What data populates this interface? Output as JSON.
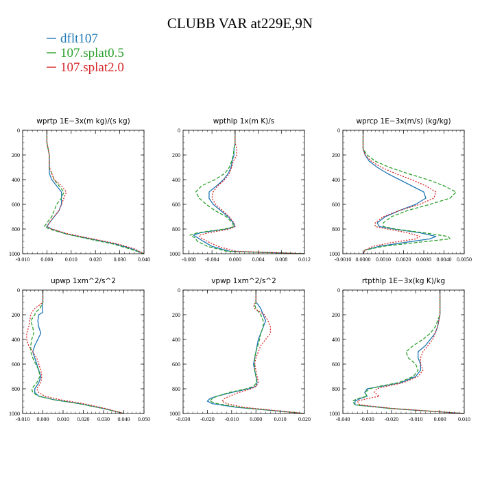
{
  "title": "CLUBB VAR at229E,9N",
  "colors": {
    "dflt107": "#1f77b4",
    "splat05": "#2ca02c",
    "splat20": "#d62728"
  },
  "legend": [
    {
      "label": "dflt107",
      "color": "#1f77b4",
      "dash": "solid"
    },
    {
      "label": "107.splat0.5",
      "color": "#2ca02c",
      "dash": "dash"
    },
    {
      "label": "107.splat2.0",
      "color": "#d62728",
      "dash": "dot"
    }
  ],
  "chart_data": [
    {
      "type": "line",
      "title": "wprtp   1E−3x(m kg)/(s kg)",
      "xlim": [
        -0.01,
        0.04
      ],
      "xticks": [
        "-0.010",
        "0.000",
        "0.010",
        "0.020",
        "0.030",
        "0.040"
      ],
      "ylim": [
        1000,
        0
      ],
      "yticks": [
        "0",
        "200",
        "400",
        "600",
        "800",
        "1000"
      ],
      "y": [
        0,
        100,
        200,
        300,
        350,
        400,
        450,
        500,
        550,
        600,
        650,
        700,
        750,
        780,
        800,
        840,
        880,
        920,
        960,
        1000
      ],
      "series": [
        {
          "name": "dflt107",
          "x": [
            0.0,
            0.0,
            0.001,
            0.001,
            0.001,
            0.002,
            0.004,
            0.006,
            0.006,
            0.006,
            0.005,
            0.003,
            0.001,
            0.0,
            0.002,
            0.008,
            0.018,
            0.028,
            0.035,
            0.04
          ]
        },
        {
          "name": "107.splat0.5",
          "x": [
            0.0,
            0.0,
            0.001,
            0.001,
            0.002,
            0.003,
            0.005,
            0.007,
            0.006,
            0.004,
            0.003,
            0.002,
            0.0,
            -0.001,
            0.001,
            0.008,
            0.017,
            0.027,
            0.034,
            0.04
          ]
        },
        {
          "name": "107.splat2.0",
          "x": [
            0.0,
            0.0,
            0.001,
            0.001,
            0.002,
            0.003,
            0.006,
            0.008,
            0.007,
            0.006,
            0.005,
            0.003,
            0.001,
            0.0,
            0.002,
            0.009,
            0.019,
            0.029,
            0.036,
            0.04
          ]
        }
      ]
    },
    {
      "type": "line",
      "title": "wpthlp   1x(m K)/s",
      "xlim": [
        -0.009,
        0.012
      ],
      "xticks": [
        "-0.008",
        "-0.004",
        "0.000",
        "0.004",
        "0.008",
        "0.012"
      ],
      "ylim": [
        1000,
        0
      ],
      "yticks": [
        "0",
        "200",
        "400",
        "600",
        "800",
        "1000"
      ],
      "y": [
        0,
        100,
        150,
        200,
        250,
        300,
        350,
        400,
        450,
        500,
        550,
        600,
        650,
        700,
        750,
        780,
        800,
        830,
        850,
        870,
        900,
        940,
        980,
        1000
      ],
      "series": [
        {
          "name": "dflt107",
          "x": [
            0.0,
            0.0,
            -0.0002,
            -0.0002,
            -0.0005,
            -0.0007,
            -0.0012,
            -0.002,
            -0.0032,
            -0.0045,
            -0.0045,
            -0.0038,
            -0.0025,
            -0.0012,
            -0.0003,
            0.0,
            -0.0015,
            -0.006,
            -0.0072,
            -0.0065,
            -0.0055,
            -0.004,
            -0.001,
            0.012
          ]
        },
        {
          "name": "107.splat0.5",
          "x": [
            0.0,
            0.0,
            -0.0002,
            -0.0003,
            -0.0006,
            -0.001,
            -0.0018,
            -0.0035,
            -0.0058,
            -0.0068,
            -0.0062,
            -0.005,
            -0.0035,
            -0.0015,
            -0.0005,
            -0.0002,
            -0.0018,
            -0.0065,
            -0.0078,
            -0.007,
            -0.0065,
            -0.0048,
            -0.0015,
            0.012
          ]
        },
        {
          "name": "107.splat2.0",
          "x": [
            0.0,
            0.0,
            0.0003,
            0.0003,
            -0.0003,
            -0.0006,
            -0.001,
            -0.0018,
            -0.003,
            -0.0038,
            -0.004,
            -0.0034,
            -0.0022,
            -0.001,
            -0.0002,
            0.0,
            -0.001,
            -0.0045,
            -0.0062,
            -0.006,
            -0.0048,
            -0.003,
            0.0,
            0.012
          ]
        }
      ]
    },
    {
      "type": "line",
      "title": "wprcp   1E−3x(m/s) (kg/kg)",
      "xlim": [
        -0.001,
        0.005
      ],
      "xticks": [
        "-0.0010",
        "0.0000",
        "0.0010",
        "0.0020",
        "0.0030",
        "0.0040",
        "0.0050"
      ],
      "ylim": [
        1000,
        0
      ],
      "yticks": [
        "0",
        "200",
        "400",
        "600",
        "800",
        "1000"
      ],
      "y": [
        0,
        100,
        150,
        200,
        250,
        300,
        350,
        400,
        450,
        500,
        550,
        600,
        650,
        700,
        750,
        780,
        800,
        830,
        860,
        880,
        910,
        940,
        970,
        1000
      ],
      "series": [
        {
          "name": "dflt107",
          "x": [
            0.0,
            0.0,
            0.0,
            0.0001,
            0.0003,
            0.0007,
            0.0012,
            0.0018,
            0.0024,
            0.003,
            0.0031,
            0.0026,
            0.0018,
            0.0011,
            0.0007,
            0.0008,
            0.0015,
            0.0028,
            0.0036,
            0.0033,
            0.002,
            0.0008,
            0.0001,
            0.0
          ]
        },
        {
          "name": "107.splat0.5",
          "x": [
            0.0,
            0.0,
            0.0,
            0.0002,
            0.0006,
            0.0013,
            0.0022,
            0.0032,
            0.004,
            0.0046,
            0.0043,
            0.0033,
            0.0022,
            0.0014,
            0.001,
            0.001,
            0.0016,
            0.003,
            0.0042,
            0.0043,
            0.0026,
            0.001,
            0.0001,
            0.0
          ]
        },
        {
          "name": "107.splat2.0",
          "x": [
            0.0,
            0.0,
            0.0,
            0.0001,
            0.0004,
            0.0009,
            0.0016,
            0.0024,
            0.0031,
            0.0036,
            0.0035,
            0.0028,
            0.0018,
            0.001,
            0.0006,
            0.0006,
            0.0012,
            0.0022,
            0.0028,
            0.0026,
            0.0014,
            0.0005,
            0.0001,
            0.0
          ]
        }
      ]
    },
    {
      "type": "line",
      "title": "upwp   1xm^2/s^2",
      "xlim": [
        -0.01,
        0.05
      ],
      "xticks": [
        "-0.010",
        "0.000",
        "0.010",
        "0.020",
        "0.030",
        "0.040",
        "0.050"
      ],
      "ylim": [
        1000,
        0
      ],
      "yticks": [
        "0",
        "200",
        "400",
        "600",
        "800",
        "1000"
      ],
      "y": [
        0,
        100,
        150,
        180,
        200,
        250,
        300,
        350,
        400,
        450,
        500,
        550,
        600,
        650,
        700,
        750,
        800,
        830,
        860,
        890,
        920,
        960,
        1000
      ],
      "series": [
        {
          "name": "dflt107",
          "x": [
            0.0,
            0.0,
            -0.0003,
            0.0,
            -0.002,
            -0.0025,
            -0.002,
            -0.001,
            -0.0025,
            -0.004,
            -0.005,
            -0.004,
            -0.003,
            -0.002,
            -0.001,
            -0.002,
            -0.004,
            -0.004,
            -0.002,
            0.006,
            0.018,
            0.03,
            0.04
          ]
        },
        {
          "name": "107.splat0.5",
          "x": [
            0.0,
            0.0,
            -0.0015,
            -0.0035,
            -0.004,
            -0.006,
            -0.005,
            -0.0045,
            -0.0055,
            -0.006,
            -0.006,
            -0.005,
            -0.0035,
            -0.002,
            -0.0015,
            -0.003,
            -0.0055,
            -0.005,
            -0.002,
            0.006,
            0.018,
            0.03,
            0.04
          ]
        },
        {
          "name": "107.splat2.0",
          "x": [
            0.0,
            0.0,
            -0.004,
            -0.0055,
            -0.006,
            -0.0065,
            -0.007,
            -0.008,
            -0.008,
            -0.007,
            -0.005,
            -0.003,
            -0.002,
            -0.001,
            -0.0005,
            -0.001,
            -0.003,
            -0.002,
            0.001,
            0.009,
            0.02,
            0.031,
            0.04
          ]
        }
      ]
    },
    {
      "type": "line",
      "title": "vpwp   1xm^2/s^2",
      "xlim": [
        -0.03,
        0.02
      ],
      "xticks": [
        "-0.030",
        "-0.020",
        "-0.010",
        "0.000",
        "0.010",
        "0.020"
      ],
      "ylim": [
        1000,
        0
      ],
      "yticks": [
        "0",
        "200",
        "400",
        "600",
        "800",
        "1000"
      ],
      "y": [
        0,
        100,
        120,
        150,
        200,
        250,
        300,
        350,
        400,
        450,
        500,
        550,
        600,
        650,
        700,
        750,
        780,
        800,
        830,
        860,
        880,
        900,
        920,
        950,
        1000
      ],
      "series": [
        {
          "name": "dflt107",
          "x": [
            0.0,
            0.0,
            0.001,
            0.002,
            0.003,
            0.004,
            0.003,
            0.002,
            0.001,
            0.0005,
            0.0,
            -0.0005,
            -0.001,
            -0.0005,
            0.0,
            0.0005,
            0.0,
            -0.003,
            -0.01,
            -0.016,
            -0.019,
            -0.02,
            -0.018,
            -0.008,
            0.02
          ]
        },
        {
          "name": "107.splat0.5",
          "x": [
            0.0,
            0.0,
            -0.0005,
            0.0,
            0.002,
            0.003,
            0.003,
            0.002,
            0.0015,
            0.0008,
            0.0,
            -0.0005,
            -0.0005,
            -0.0005,
            0.0,
            0.0003,
            -0.001,
            -0.004,
            -0.011,
            -0.016,
            -0.018,
            -0.019,
            -0.016,
            -0.007,
            0.02
          ]
        },
        {
          "name": "107.splat2.0",
          "x": [
            0.0,
            0.0,
            -0.001,
            -0.0005,
            0.0035,
            0.005,
            0.006,
            0.006,
            0.004,
            0.002,
            0.001,
            0.0,
            -0.0005,
            0.0,
            0.0005,
            0.001,
            0.0,
            -0.002,
            -0.007,
            -0.011,
            -0.013,
            -0.014,
            -0.012,
            -0.005,
            0.02
          ]
        }
      ]
    },
    {
      "type": "line",
      "title": "rtpthlp   1E−3x(kg K)/kg",
      "xlim": [
        -0.04,
        0.01
      ],
      "xticks": [
        "-0.040",
        "-0.030",
        "-0.020",
        "-0.010",
        "0.000",
        "0.010"
      ],
      "ylim": [
        1000,
        0
      ],
      "yticks": [
        "0",
        "200",
        "400",
        "600",
        "800",
        "1000"
      ],
      "y": [
        0,
        100,
        200,
        300,
        350,
        400,
        450,
        500,
        550,
        600,
        650,
        700,
        750,
        780,
        800,
        830,
        860,
        880,
        900,
        930,
        960,
        1000
      ],
      "series": [
        {
          "name": "dflt107",
          "x": [
            0.0,
            0.0,
            0.0,
            -0.001,
            -0.002,
            -0.004,
            -0.006,
            -0.009,
            -0.009,
            -0.008,
            -0.008,
            -0.01,
            -0.016,
            -0.024,
            -0.03,
            -0.031,
            -0.03,
            -0.033,
            -0.035,
            -0.035,
            -0.02,
            0.01
          ]
        },
        {
          "name": "107.splat0.5",
          "x": [
            0.0,
            0.0,
            0.0,
            -0.002,
            -0.004,
            -0.007,
            -0.011,
            -0.014,
            -0.013,
            -0.01,
            -0.009,
            -0.011,
            -0.017,
            -0.025,
            -0.029,
            -0.031,
            -0.03,
            -0.034,
            -0.036,
            -0.035,
            -0.02,
            0.01
          ]
        },
        {
          "name": "107.splat2.0",
          "x": [
            0.0,
            0.0,
            0.0,
            -0.001,
            -0.002,
            -0.003,
            -0.005,
            -0.007,
            -0.008,
            -0.008,
            -0.007,
            -0.009,
            -0.015,
            -0.022,
            -0.026,
            -0.027,
            -0.025,
            -0.03,
            -0.034,
            -0.033,
            -0.019,
            0.01
          ]
        }
      ]
    }
  ]
}
